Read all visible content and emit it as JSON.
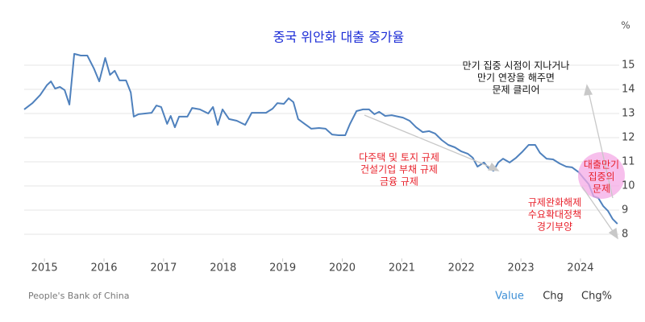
{
  "chart_data": {
    "type": "line",
    "title": "중국 위안화 대출 증가율",
    "title_color": "#1a2bd6",
    "y_unit": "%",
    "source": "People's Bank of China",
    "tabs": [
      "Value",
      "Chg",
      "Chg%"
    ],
    "active_tab_color": "#3d8fd6",
    "x": [
      2014.66,
      2014.8,
      2014.93,
      2015.04,
      2015.11,
      2015.18,
      2015.26,
      2015.34,
      2015.42,
      2015.5,
      2015.61,
      2015.72,
      2015.83,
      2015.92,
      2016.02,
      2016.1,
      2016.18,
      2016.26,
      2016.37,
      2016.45,
      2016.5,
      2016.58,
      2016.69,
      2016.8,
      2016.88,
      2016.96,
      2017.06,
      2017.12,
      2017.19,
      2017.26,
      2017.4,
      2017.48,
      2017.61,
      2017.75,
      2017.83,
      2017.91,
      2017.99,
      2018.1,
      2018.23,
      2018.37,
      2018.48,
      2018.61,
      2018.72,
      2018.83,
      2018.91,
      2019.02,
      2019.1,
      2019.18,
      2019.26,
      2019.37,
      2019.48,
      2019.61,
      2019.72,
      2019.83,
      2019.94,
      2020.05,
      2020.13,
      2020.24,
      2020.35,
      2020.45,
      2020.54,
      2020.62,
      2020.72,
      2020.83,
      2020.94,
      2021.02,
      2021.13,
      2021.24,
      2021.35,
      2021.46,
      2021.56,
      2021.67,
      2021.78,
      2021.89,
      2022.0,
      2022.11,
      2022.19,
      2022.27,
      2022.38,
      2022.46,
      2022.54,
      2022.62,
      2022.7,
      2022.81,
      2022.92,
      2023.03,
      2023.13,
      2023.24,
      2023.32,
      2023.43,
      2023.54,
      2023.65,
      2023.76,
      2023.86,
      2023.97,
      2024.05,
      2024.14,
      2024.22,
      2024.3,
      2024.38,
      2024.46,
      2024.54,
      2024.62
    ],
    "series": [
      {
        "color": "#4f81bd",
        "values": [
          13.17,
          13.43,
          13.77,
          14.17,
          14.33,
          14.03,
          14.1,
          13.97,
          13.37,
          15.47,
          15.4,
          15.4,
          14.87,
          14.33,
          15.3,
          14.6,
          14.77,
          14.37,
          14.37,
          13.87,
          12.87,
          12.97,
          13.0,
          13.03,
          13.33,
          13.27,
          12.57,
          12.9,
          12.43,
          12.87,
          12.87,
          13.23,
          13.17,
          13.0,
          13.27,
          12.53,
          13.17,
          12.77,
          12.7,
          12.53,
          13.03,
          13.03,
          13.03,
          13.2,
          13.43,
          13.4,
          13.63,
          13.47,
          12.77,
          12.57,
          12.37,
          12.4,
          12.37,
          12.13,
          12.1,
          12.1,
          12.57,
          13.1,
          13.17,
          13.17,
          12.97,
          13.07,
          12.9,
          12.93,
          12.87,
          12.83,
          12.7,
          12.43,
          12.23,
          12.27,
          12.17,
          11.9,
          11.7,
          11.6,
          11.43,
          11.33,
          11.17,
          10.8,
          10.97,
          10.73,
          10.63,
          10.97,
          11.13,
          10.97,
          11.17,
          11.43,
          11.7,
          11.7,
          11.37,
          11.13,
          11.1,
          10.93,
          10.8,
          10.77,
          10.57,
          10.33,
          10.07,
          9.57,
          9.5,
          9.17,
          8.97,
          8.63,
          8.43
        ]
      }
    ],
    "xlim": [
      2014.66,
      2024.65
    ],
    "xticks": [
      2015,
      2016,
      2017,
      2018,
      2019,
      2020,
      2021,
      2022,
      2023,
      2024
    ],
    "ylim": [
      7.0,
      16.9
    ],
    "yticks": [
      8,
      9,
      10,
      11,
      12,
      13,
      14,
      15
    ],
    "grid": true,
    "annotations": [
      {
        "lines": [
          "만기 집중 시점이 지나거나",
          "만기 연장을 해주면",
          "문제 클리어"
        ],
        "color": "#111111"
      },
      {
        "lines": [
          "다주택 및 토지 규제",
          "건설기업 부채 규제",
          "금융 규제"
        ],
        "color": "#e8202a"
      },
      {
        "lines": [
          "규제완화해제",
          "수요확대정책",
          "경기부양"
        ],
        "color": "#e8202a"
      },
      {
        "lines": [
          "대출만기",
          "집중의",
          "문제"
        ],
        "color": "#e8202a"
      }
    ]
  }
}
